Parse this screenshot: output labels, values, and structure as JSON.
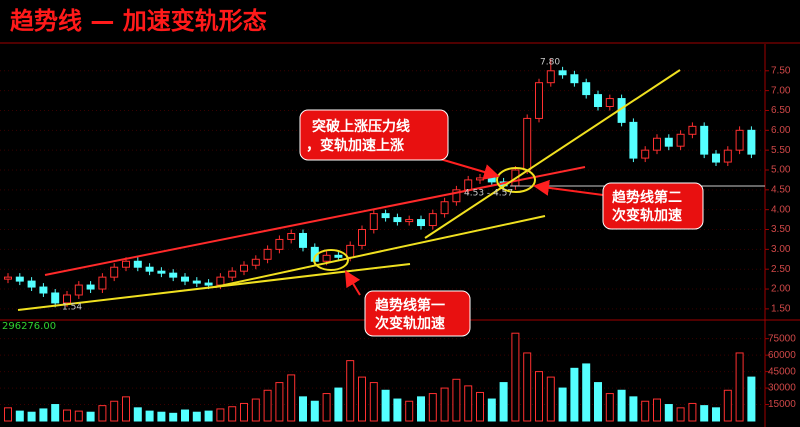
{
  "chart_data": {
    "type": "candlestick",
    "title": "趋势线 — 加速变轨形态",
    "open": [
      2.25,
      2.3,
      2.2,
      2.05,
      1.9,
      1.65,
      1.85,
      2.1,
      2.0,
      2.3,
      2.55,
      2.7,
      2.55,
      2.45,
      2.4,
      2.3,
      2.2,
      2.15,
      2.1,
      2.3,
      2.45,
      2.6,
      2.75,
      3.0,
      3.25,
      3.4,
      3.05,
      2.7,
      2.85,
      2.8,
      3.1,
      3.5,
      3.9,
      3.8,
      3.7,
      3.75,
      3.6,
      3.9,
      4.2,
      4.5,
      4.75,
      4.8,
      4.7,
      4.6,
      5.0,
      6.3,
      7.2,
      7.5,
      7.4,
      7.2,
      6.9,
      6.6,
      6.8,
      6.2,
      5.3,
      5.5,
      5.8,
      5.6,
      5.9,
      6.1,
      5.4,
      5.2,
      5.5,
      6.0
    ],
    "high": [
      2.4,
      2.4,
      2.3,
      2.15,
      2.0,
      1.95,
      2.2,
      2.2,
      2.4,
      2.65,
      2.8,
      2.8,
      2.65,
      2.55,
      2.5,
      2.4,
      2.3,
      2.25,
      2.4,
      2.55,
      2.7,
      2.85,
      3.1,
      3.35,
      3.5,
      3.5,
      3.15,
      2.95,
      2.95,
      3.2,
      3.6,
      4.0,
      4.0,
      3.9,
      3.85,
      3.85,
      4.0,
      4.3,
      4.6,
      4.85,
      4.9,
      4.9,
      4.8,
      5.1,
      6.4,
      7.3,
      7.8,
      7.6,
      7.5,
      7.3,
      7.0,
      6.9,
      6.9,
      6.3,
      5.6,
      5.9,
      5.9,
      6.0,
      6.2,
      6.2,
      5.5,
      5.6,
      6.1,
      6.1
    ],
    "low": [
      2.15,
      2.1,
      1.95,
      1.8,
      1.54,
      1.55,
      1.75,
      1.9,
      1.9,
      2.2,
      2.45,
      2.45,
      2.35,
      2.3,
      2.2,
      2.1,
      2.05,
      2.0,
      2.0,
      2.2,
      2.35,
      2.5,
      2.65,
      2.9,
      3.15,
      2.95,
      2.6,
      2.6,
      2.7,
      2.7,
      3.0,
      3.4,
      3.7,
      3.6,
      3.6,
      3.5,
      3.5,
      3.8,
      4.1,
      4.4,
      4.65,
      4.6,
      4.5,
      4.5,
      4.9,
      6.2,
      7.1,
      7.3,
      7.1,
      6.8,
      6.5,
      6.5,
      6.1,
      5.2,
      5.2,
      5.4,
      5.5,
      5.5,
      5.8,
      5.3,
      5.1,
      5.1,
      5.4,
      5.3
    ],
    "close": [
      2.3,
      2.2,
      2.05,
      1.9,
      1.65,
      1.85,
      2.1,
      2.0,
      2.3,
      2.55,
      2.7,
      2.55,
      2.45,
      2.4,
      2.3,
      2.2,
      2.15,
      2.1,
      2.3,
      2.45,
      2.6,
      2.75,
      3.0,
      3.25,
      3.4,
      3.05,
      2.7,
      2.85,
      2.8,
      3.1,
      3.5,
      3.9,
      3.8,
      3.7,
      3.75,
      3.6,
      3.9,
      4.2,
      4.5,
      4.75,
      4.8,
      4.7,
      4.6,
      5.0,
      6.3,
      7.2,
      7.5,
      7.4,
      7.2,
      6.9,
      6.6,
      6.8,
      6.2,
      5.3,
      5.5,
      5.8,
      5.6,
      5.9,
      6.1,
      5.4,
      5.2,
      5.5,
      6.0,
      5.4
    ],
    "volume": [
      12000,
      9000,
      8000,
      11000,
      15000,
      10000,
      9000,
      8000,
      14000,
      18000,
      22000,
      12000,
      9000,
      8000,
      7000,
      10000,
      8000,
      9000,
      11000,
      13000,
      16000,
      20000,
      28000,
      35000,
      42000,
      22000,
      18000,
      25000,
      30000,
      55000,
      40000,
      35000,
      28000,
      20000,
      18000,
      22000,
      25000,
      30000,
      38000,
      32000,
      26000,
      20000,
      35000,
      80000,
      62000,
      45000,
      40000,
      30000,
      48000,
      52000,
      35000,
      25000,
      28000,
      22000,
      18000,
      20000,
      15000,
      12000,
      16000,
      14000,
      12000,
      28000,
      62000,
      40000
    ],
    "up_color": "#ff3030",
    "down_color": "#54ffff",
    "ylim": [
      1.27,
      8.15
    ],
    "yticks": [
      {
        "value": 1.5,
        "label": "1.50"
      },
      {
        "value": 2,
        "label": "2.00"
      },
      {
        "value": 2.5,
        "label": "2.50"
      },
      {
        "value": 3,
        "label": "3.00"
      },
      {
        "value": 3.5,
        "label": "3.50"
      },
      {
        "value": 4,
        "label": "4.00"
      },
      {
        "value": 4.5,
        "label": "4.50"
      },
      {
        "value": 5,
        "label": "5.00"
      },
      {
        "value": 5.5,
        "label": "5.50"
      },
      {
        "value": 6,
        "label": "6.00"
      },
      {
        "value": 6.5,
        "label": "6.50"
      },
      {
        "value": 7,
        "label": "7.00"
      },
      {
        "value": 7.5,
        "label": "7.50"
      }
    ],
    "y2lim": [
      0,
      82000
    ],
    "y2ticks": [
      15000,
      30000,
      45000,
      60000,
      75000
    ],
    "grid": true,
    "annotations": {
      "peak": "7.80",
      "low": "1.54",
      "range": "4.53 - 4.57",
      "volume_top": "296276.00",
      "box1": [
        "突破上涨压力线",
        "，变轨加速上涨"
      ],
      "box2": [
        "趋势线第二",
        "次变轨加速"
      ],
      "box3": [
        "趋势线第一",
        "次变轨加速"
      ]
    }
  }
}
